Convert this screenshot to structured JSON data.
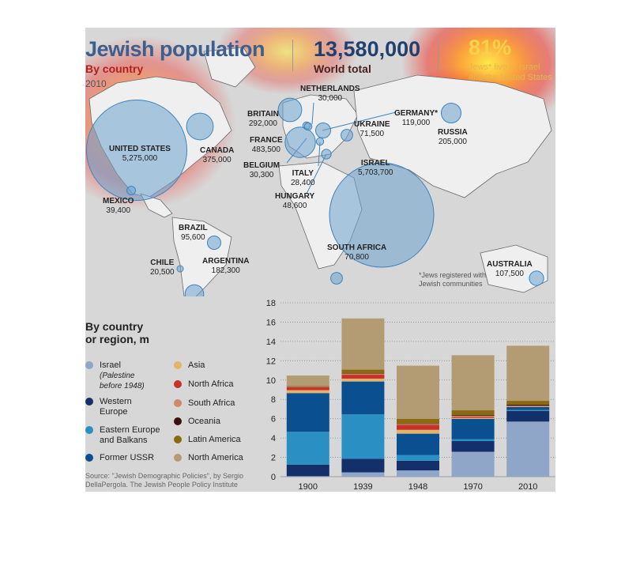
{
  "header": {
    "title": "Jewish population",
    "subtitle": "By country",
    "year": "2010",
    "total_value": "13,580,000",
    "total_label": "World total",
    "share_value": "81%",
    "share_label_1": "Jews* live in Israel",
    "share_label_2": "and the United States"
  },
  "map": {
    "note_1": "*Jews registered with",
    "note_2": "Jewish communities",
    "countries": [
      {
        "name": "UNITED STATES",
        "value": "5,275,000",
        "population": 5275000
      },
      {
        "name": "CANADA",
        "value": "375,000",
        "population": 375000
      },
      {
        "name": "MEXICO",
        "value": "39,400",
        "population": 39400
      },
      {
        "name": "BRAZIL",
        "value": "95,600",
        "population": 95600
      },
      {
        "name": "CHILE",
        "value": "20,500",
        "population": 20500
      },
      {
        "name": "ARGENTINA",
        "value": "182,300",
        "population": 182300
      },
      {
        "name": "BRITAIN",
        "value": "292,000",
        "population": 292000
      },
      {
        "name": "NETHERLANDS",
        "value": "30,000",
        "population": 30000
      },
      {
        "name": "FRANCE",
        "value": "483,500",
        "population": 483500
      },
      {
        "name": "BELGIUM",
        "value": "30,300",
        "population": 30300
      },
      {
        "name": "ITALY",
        "value": "28,400",
        "population": 28400
      },
      {
        "name": "HUNGARY",
        "value": "48,600",
        "population": 48600
      },
      {
        "name": "GERMANY*",
        "value": "119,000",
        "population": 119000
      },
      {
        "name": "UKRAINE",
        "value": "71,500",
        "population": 71500
      },
      {
        "name": "RUSSIA",
        "value": "205,000",
        "population": 205000
      },
      {
        "name": "ISRAEL",
        "value": "5,703,700",
        "population": 5703700
      },
      {
        "name": "SOUTH AFRICA",
        "value": "70,800",
        "population": 70800
      },
      {
        "name": "AUSTRALIA",
        "value": "107,500",
        "population": 107500
      }
    ]
  },
  "legend": {
    "title_1": "By country",
    "title_2": "or region, m",
    "items": [
      {
        "label": "Israel",
        "sub_1": "(Palestine",
        "sub_2": "before 1948)",
        "color": "#8fa6c8"
      },
      {
        "label": "Western",
        "label_2": "Europe",
        "color": "#13306b"
      },
      {
        "label": "Eastern Europe",
        "label_2": "and Balkans",
        "color": "#2a8fc2"
      },
      {
        "label": "Former USSR",
        "color": "#0a4f8f"
      },
      {
        "label": "Asia",
        "color": "#e2b46a"
      },
      {
        "label": "North Africa",
        "color": "#c8302a"
      },
      {
        "label": "South Africa",
        "color": "#cf8a6a"
      },
      {
        "label": "Oceania",
        "color": "#3a1010"
      },
      {
        "label": "Latin America",
        "color": "#8a6a10"
      },
      {
        "label": "North America",
        "color": "#b39c74"
      }
    ]
  },
  "source": {
    "line_1": "Source: \"Jewish Demographic Policies\", by Sergio",
    "line_2": "DellaPergola. The Jewish People Policy Institute"
  },
  "chart_data": {
    "type": "bar",
    "stacked": true,
    "categories": [
      "1900",
      "1939",
      "1948",
      "1970",
      "2010"
    ],
    "ylim": [
      0,
      18
    ],
    "yticks": [
      0,
      2,
      4,
      6,
      8,
      10,
      12,
      14,
      16,
      18
    ],
    "ylabel": "By country or region, m",
    "grid": true,
    "series": [
      {
        "name": "Israel",
        "color": "#8fa6c8",
        "values": [
          0.05,
          0.45,
          0.65,
          2.58,
          5.7
        ]
      },
      {
        "name": "Western Europe",
        "color": "#13306b",
        "values": [
          1.2,
          1.4,
          1.0,
          1.1,
          1.1
        ]
      },
      {
        "name": "Eastern Europe and Balkans",
        "color": "#2a8fc2",
        "values": [
          3.4,
          4.6,
          0.6,
          0.2,
          0.1
        ]
      },
      {
        "name": "Former USSR",
        "color": "#0a4f8f",
        "values": [
          4.0,
          3.4,
          2.2,
          2.1,
          0.3
        ]
      },
      {
        "name": "Asia",
        "color": "#e2b46a",
        "values": [
          0.3,
          0.3,
          0.4,
          0.1,
          0.05
        ]
      },
      {
        "name": "North Africa",
        "color": "#c8302a",
        "values": [
          0.3,
          0.4,
          0.5,
          0.1,
          0.02
        ]
      },
      {
        "name": "South Africa",
        "color": "#cf8a6a",
        "values": [
          0.05,
          0.1,
          0.1,
          0.12,
          0.07
        ]
      },
      {
        "name": "Oceania",
        "color": "#3a1010",
        "values": [
          0.02,
          0.03,
          0.04,
          0.07,
          0.11
        ]
      },
      {
        "name": "Latin America",
        "color": "#8a6a10",
        "values": [
          0.05,
          0.4,
          0.5,
          0.5,
          0.4
        ]
      },
      {
        "name": "North America",
        "color": "#b39c74",
        "values": [
          1.1,
          5.3,
          5.5,
          5.7,
          5.7
        ]
      }
    ]
  }
}
